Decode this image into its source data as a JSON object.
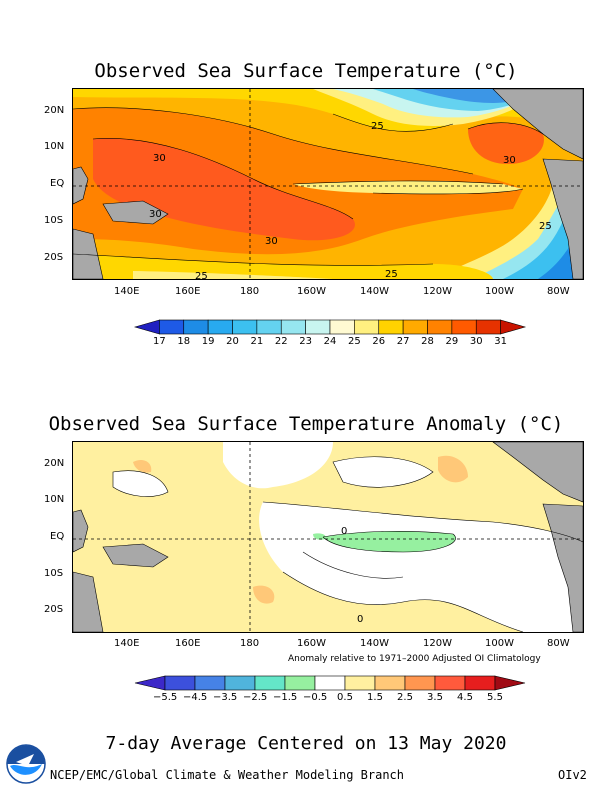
{
  "panel_top": {
    "title": "Observed Sea Surface Temperature (°C)",
    "lat_labels": [
      "20N",
      "10N",
      "EQ",
      "10S",
      "20S"
    ],
    "lon_labels": [
      "140E",
      "160E",
      "180",
      "160W",
      "140W",
      "120W",
      "100W",
      "80W"
    ],
    "contour_labels": [
      "25",
      "30",
      "30",
      "30",
      "30",
      "25",
      "25",
      "25"
    ],
    "colorbar_ticks": [
      "17",
      "18",
      "19",
      "20",
      "21",
      "22",
      "23",
      "24",
      "25",
      "26",
      "27",
      "28",
      "29",
      "30",
      "31"
    ],
    "colorbar_colors": [
      "#2020c0",
      "#1e5ae6",
      "#1e8ce6",
      "#28aaf0",
      "#3cc0f0",
      "#64d2f0",
      "#96e6f0",
      "#c8f5f0",
      "#fffad2",
      "#fff080",
      "#ffd200",
      "#ffaa00",
      "#ff8200",
      "#ff5a00",
      "#e63200",
      "#c81400"
    ]
  },
  "panel_bottom": {
    "title": "Observed Sea Surface Temperature Anomaly (°C)",
    "lat_labels": [
      "20N",
      "10N",
      "EQ",
      "10S",
      "20S"
    ],
    "lon_labels": [
      "140E",
      "160E",
      "180",
      "160W",
      "140W",
      "120W",
      "100W",
      "80W"
    ],
    "contour_labels": [
      "0",
      "0"
    ],
    "note": "Anomaly relative to 1971–2000 Adjusted OI Climatology",
    "colorbar_ticks": [
      "−5.5",
      "−4.5",
      "−3.5",
      "−2.5",
      "−1.5",
      "−0.5",
      "0.5",
      "1.5",
      "2.5",
      "3.5",
      "4.5",
      "5.5"
    ],
    "colorbar_colors": [
      "#3c28c8",
      "#3c50dc",
      "#4682e6",
      "#50b4dc",
      "#64e6c8",
      "#96f0a0",
      "#ffffff",
      "#fff0a0",
      "#ffc878",
      "#ff9650",
      "#ff5a3c",
      "#e61e1e",
      "#a00a14"
    ]
  },
  "footer": {
    "period": "7-day Average Centered on 13 May 2020",
    "credit": "NCEP/EMC/Global Climate & Weather Modeling Branch",
    "version": "OIv2",
    "logo_icon": "noaa-logo-icon"
  },
  "colors": {
    "land": "#a8a8a8",
    "warm_pool": "#ff5a1e",
    "warm": "#ff9600",
    "mid": "#ffc800",
    "cool": "#fff080",
    "cold": "#64c8f0",
    "anom_pos": "#fff0a0",
    "anom_neg_small": "#96f0a0",
    "anom_pos_mid": "#ffc878"
  }
}
